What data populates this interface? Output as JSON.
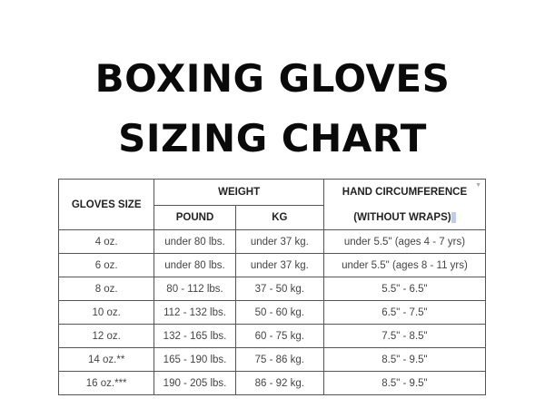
{
  "title": {
    "line1": "BOXING GLOVES",
    "line2": "SIZING CHART"
  },
  "table": {
    "headers": {
      "gloves_size": "GLOVES SIZE",
      "weight": "WEIGHT",
      "pound": "POUND",
      "kg": "KG",
      "hand_circumference": "HAND CIRCUMFERENCE",
      "without_wraps": "(WITHOUT WRAPS)"
    },
    "rows": [
      [
        "4 oz.",
        "under 80 lbs.",
        "under 37 kg.",
        "under 5.5\" (ages 4 - 7 yrs)"
      ],
      [
        "6 oz.",
        "under 80 lbs.",
        "under 37 kg.",
        "under 5.5\" (ages 8 - 11 yrs)"
      ],
      [
        "8 oz.",
        "80 - 112 lbs.",
        "37 - 50 kg.",
        "5.5\" - 6.5\""
      ],
      [
        "10 oz.",
        "112 - 132 lbs.",
        "50 - 60 kg.",
        "6.5\" - 7.5\""
      ],
      [
        "12 oz.",
        "132 - 165 lbs.",
        "60 - 75 kg.",
        "7.5\" - 8.5\""
      ],
      [
        "14 oz.**",
        "165 - 190 lbs.",
        "75 - 86 kg.",
        "8.5\" - 9.5\""
      ],
      [
        "16 oz.***",
        "190 - 205 lbs.",
        "86 - 92 kg.",
        "8.5\" - 9.5\""
      ]
    ]
  }
}
